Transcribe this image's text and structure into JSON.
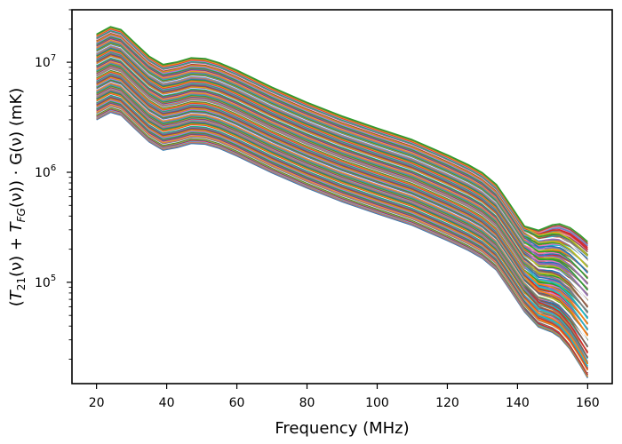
{
  "chart_data": {
    "type": "line",
    "title": "",
    "xlabel": "Frequency (MHz)",
    "ylabel": "(T21(ν) + TFG(ν)) · G(ν) (mK)",
    "ylabel_parts": {
      "open": "(",
      "t": "T",
      "sub21": "21",
      "nu1": "(ν) + ",
      "t2": "T",
      "subfg": "FG",
      "nu2": "(ν)) · G(ν) (mK)"
    },
    "xlim": [
      13,
      167
    ],
    "ylim": [
      12000,
      30000000
    ],
    "yscale": "log",
    "xticks": [
      20,
      40,
      60,
      80,
      100,
      120,
      140,
      160
    ],
    "xtick_labels": [
      "20",
      "40",
      "60",
      "80",
      "100",
      "120",
      "140",
      "160"
    ],
    "yticks": [
      {
        "value": 100000,
        "base": "10",
        "exp": "5"
      },
      {
        "value": 1000000,
        "base": "10",
        "exp": "6"
      },
      {
        "value": 10000000,
        "base": "10",
        "exp": "7"
      }
    ],
    "series_count": 160,
    "amplitude_range": [
      3000000,
      18000000
    ],
    "template": {
      "x": [
        20,
        24,
        27,
        31,
        35,
        39,
        43,
        47,
        51,
        55,
        60,
        70,
        80,
        90,
        100,
        110,
        120,
        126,
        130,
        134,
        138,
        142,
        146,
        150,
        152,
        155,
        158,
        160
      ],
      "ratio": [
        1.0,
        1.17,
        1.1,
        0.83,
        0.63,
        0.53,
        0.56,
        0.61,
        0.6,
        0.55,
        0.47,
        0.33,
        0.24,
        0.18,
        0.14,
        0.11,
        0.08,
        0.065,
        0.055,
        0.043,
        0.028,
        0.018,
        0.0145,
        0.0145,
        0.014,
        0.012,
        0.0095,
        0.008
      ]
    },
    "tail_ratio_range": [
      0.0045,
      0.013
    ],
    "colors": [
      "#1f77b4",
      "#ff7f0e",
      "#2ca02c",
      "#d62728",
      "#9467bd",
      "#8c564b",
      "#e377c2",
      "#7f7f7f",
      "#bcbd22",
      "#17becf"
    ]
  }
}
